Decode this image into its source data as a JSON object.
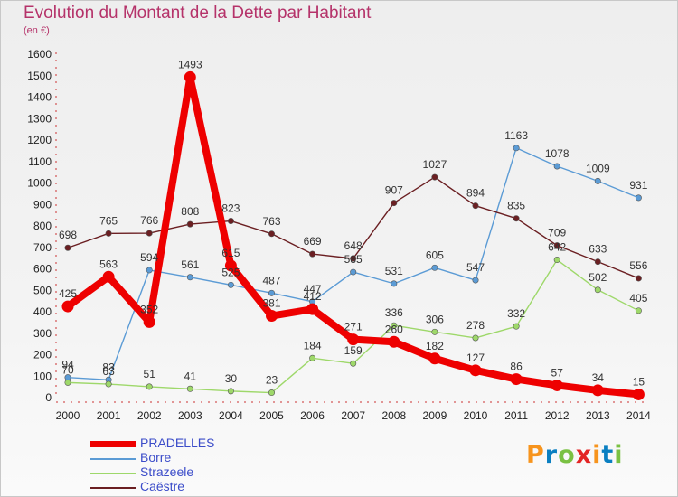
{
  "header": {
    "title": "Evolution du Montant de la Dette par Habitant",
    "unit": "(en €)"
  },
  "logo": {
    "text": "Proxiti",
    "colors": [
      "#f7941d",
      "#0a7fc1",
      "#7ac143",
      "#e32424",
      "#f7941d",
      "#0a7fc1",
      "#7ac143"
    ]
  },
  "chart_data": {
    "type": "line",
    "x": [
      "2000",
      "2001",
      "2002",
      "2003",
      "2004",
      "2005",
      "2006",
      "2007",
      "2008",
      "2009",
      "2010",
      "2011",
      "2012",
      "2013",
      "2014"
    ],
    "ylim": [
      0,
      1600
    ],
    "yticks": [
      0,
      100,
      200,
      300,
      400,
      500,
      600,
      700,
      800,
      900,
      1000,
      1100,
      1200,
      1300,
      1400,
      1500,
      1600
    ],
    "grid": false,
    "legend_position": "bottom-left",
    "series": [
      {
        "name": "PRADELLES",
        "color": "#ee0000",
        "values": [
          425,
          563,
          352,
          1493,
          615,
          381,
          412,
          271,
          260,
          182,
          127,
          86,
          57,
          34,
          15
        ]
      },
      {
        "name": "Borre",
        "color": "#5b9bd5",
        "values": [
          94,
          83,
          594,
          561,
          525,
          487,
          447,
          585,
          531,
          605,
          547,
          1163,
          1078,
          1009,
          931
        ]
      },
      {
        "name": "Strazeele",
        "color": "#9ed86a",
        "values": [
          70,
          63,
          51,
          41,
          30,
          23,
          184,
          159,
          336,
          306,
          278,
          332,
          642,
          502,
          405
        ]
      },
      {
        "name": "Caëstre",
        "color": "#6b1f22",
        "values": [
          698,
          765,
          766,
          808,
          823,
          763,
          669,
          648,
          907,
          1027,
          894,
          835,
          709,
          633,
          556
        ]
      }
    ]
  }
}
